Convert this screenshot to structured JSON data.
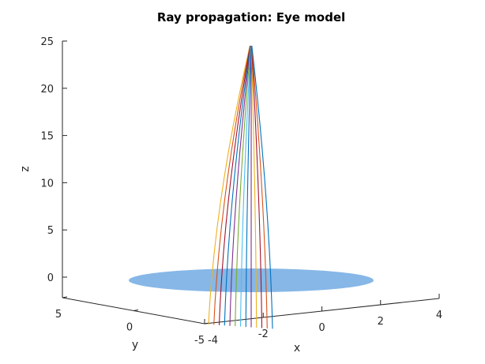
{
  "chart_data": {
    "type": "line",
    "title": "Ray propagation: Eye model",
    "xlabel": "x",
    "ylabel": "y",
    "zlabel": "z",
    "z_ticks": [
      "0",
      "5",
      "10",
      "15",
      "20",
      "25"
    ],
    "x_ticks": [
      "-4",
      "-2",
      "0",
      "2",
      "4"
    ],
    "y_ticks": [
      "5",
      "0",
      "-5"
    ],
    "zlim": [
      -2,
      25
    ],
    "xlim": [
      -4,
      4
    ],
    "ylim": [
      -5,
      5
    ],
    "grid": false,
    "surface": {
      "name": "lens disc",
      "z": -0.5,
      "color": "#7FB3E6"
    },
    "colors": [
      "#0072BD",
      "#D95319",
      "#EDB120",
      "#7E2F8E",
      "#77AC30",
      "#4DBEEE",
      "#A2142F"
    ],
    "series": [
      {
        "x": -4.0,
        "z_start": -2.0,
        "color": "#EDB120"
      },
      {
        "x": -3.5,
        "z_start": -2.0,
        "color": "#D95319"
      },
      {
        "x": -3.0,
        "z_start": -2.0,
        "color": "#A2142F"
      },
      {
        "x": -2.5,
        "z_start": -2.0,
        "color": "#0072BD"
      },
      {
        "x": -2.0,
        "z_start": -2.0,
        "color": "#7E2F8E"
      },
      {
        "x": -1.5,
        "z_start": -2.0,
        "color": "#77AC30"
      },
      {
        "x": -1.0,
        "z_start": -2.0,
        "color": "#4DBEEE"
      },
      {
        "x": -0.5,
        "z_start": -2.0,
        "color": "#0072BD"
      },
      {
        "x": 0.0,
        "z_start": -2.0,
        "color": "#7E2F8E"
      },
      {
        "x": 0.5,
        "z_start": -2.0,
        "color": "#EDB120"
      },
      {
        "x": 1.0,
        "z_start": -2.0,
        "color": "#A2142F"
      },
      {
        "x": 1.5,
        "z_start": -2.0,
        "color": "#D95319"
      },
      {
        "x": 2.0,
        "z_start": -2.0,
        "color": "#0072BD"
      }
    ],
    "focus": {
      "x": 0.0,
      "z": 24.5
    }
  }
}
